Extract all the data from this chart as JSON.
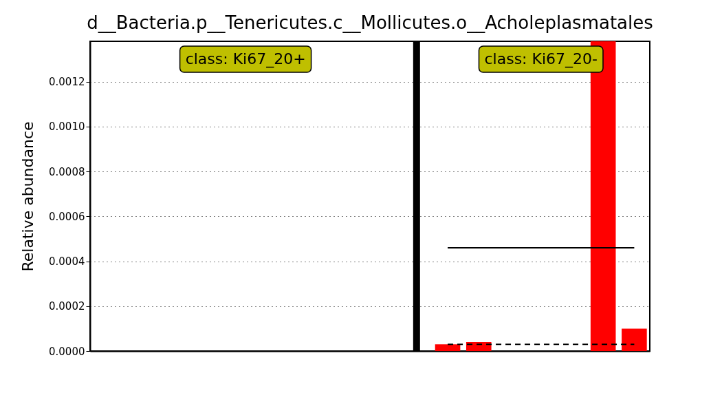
{
  "chart_data": {
    "type": "bar",
    "title": "d__Bacteria.p__Tenericutes.c__Mollicutes.o__Acholeplasmatales",
    "ylabel": "Relative abundance",
    "categories": [
      null,
      null,
      null,
      null,
      null,
      null,
      null,
      null,
      null,
      null,
      null,
      null,
      null,
      null,
      null,
      null,
      null,
      null
    ],
    "series": [
      {
        "color": "#ff0000",
        "values": [
          0,
          0,
          0,
          0,
          0,
          0,
          0,
          0,
          0,
          0,
          null,
          3e-05,
          4e-05,
          0,
          0,
          0,
          0.00138,
          0.0001
        ]
      },
      {
        "type": "line",
        "color": "#000000",
        "line_style": "solid",
        "values": [
          null,
          null,
          null,
          null,
          null,
          null,
          null,
          null,
          null,
          null,
          null,
          0.00046,
          0.00046,
          0.00046,
          0.00046,
          0.00046,
          0.00046,
          0.00046
        ]
      },
      {
        "type": "line",
        "color": "#000000",
        "line_style": "dashed",
        "values": [
          null,
          null,
          null,
          null,
          null,
          null,
          null,
          null,
          null,
          null,
          null,
          3e-05,
          3e-05,
          3e-05,
          3e-05,
          3e-05,
          3e-05,
          3e-05
        ]
      }
    ],
    "ylim": [
      0,
      0.00138
    ],
    "yticks": [
      {
        "value": 0,
        "label": "0.0000"
      },
      {
        "value": 0.0002,
        "label": "0.0002"
      },
      {
        "value": 0.0004,
        "label": "0.0004"
      },
      {
        "value": 0.0006,
        "label": "0.0006"
      },
      {
        "value": 0.0008,
        "label": "0.0008"
      },
      {
        "value": 0.001,
        "label": "0.0010"
      },
      {
        "value": 0.0012,
        "label": "0.0012"
      }
    ],
    "annotations": [
      "class: Ki67_20+",
      "class: Ki67_20-"
    ],
    "grid": "y",
    "marker": "none"
  }
}
